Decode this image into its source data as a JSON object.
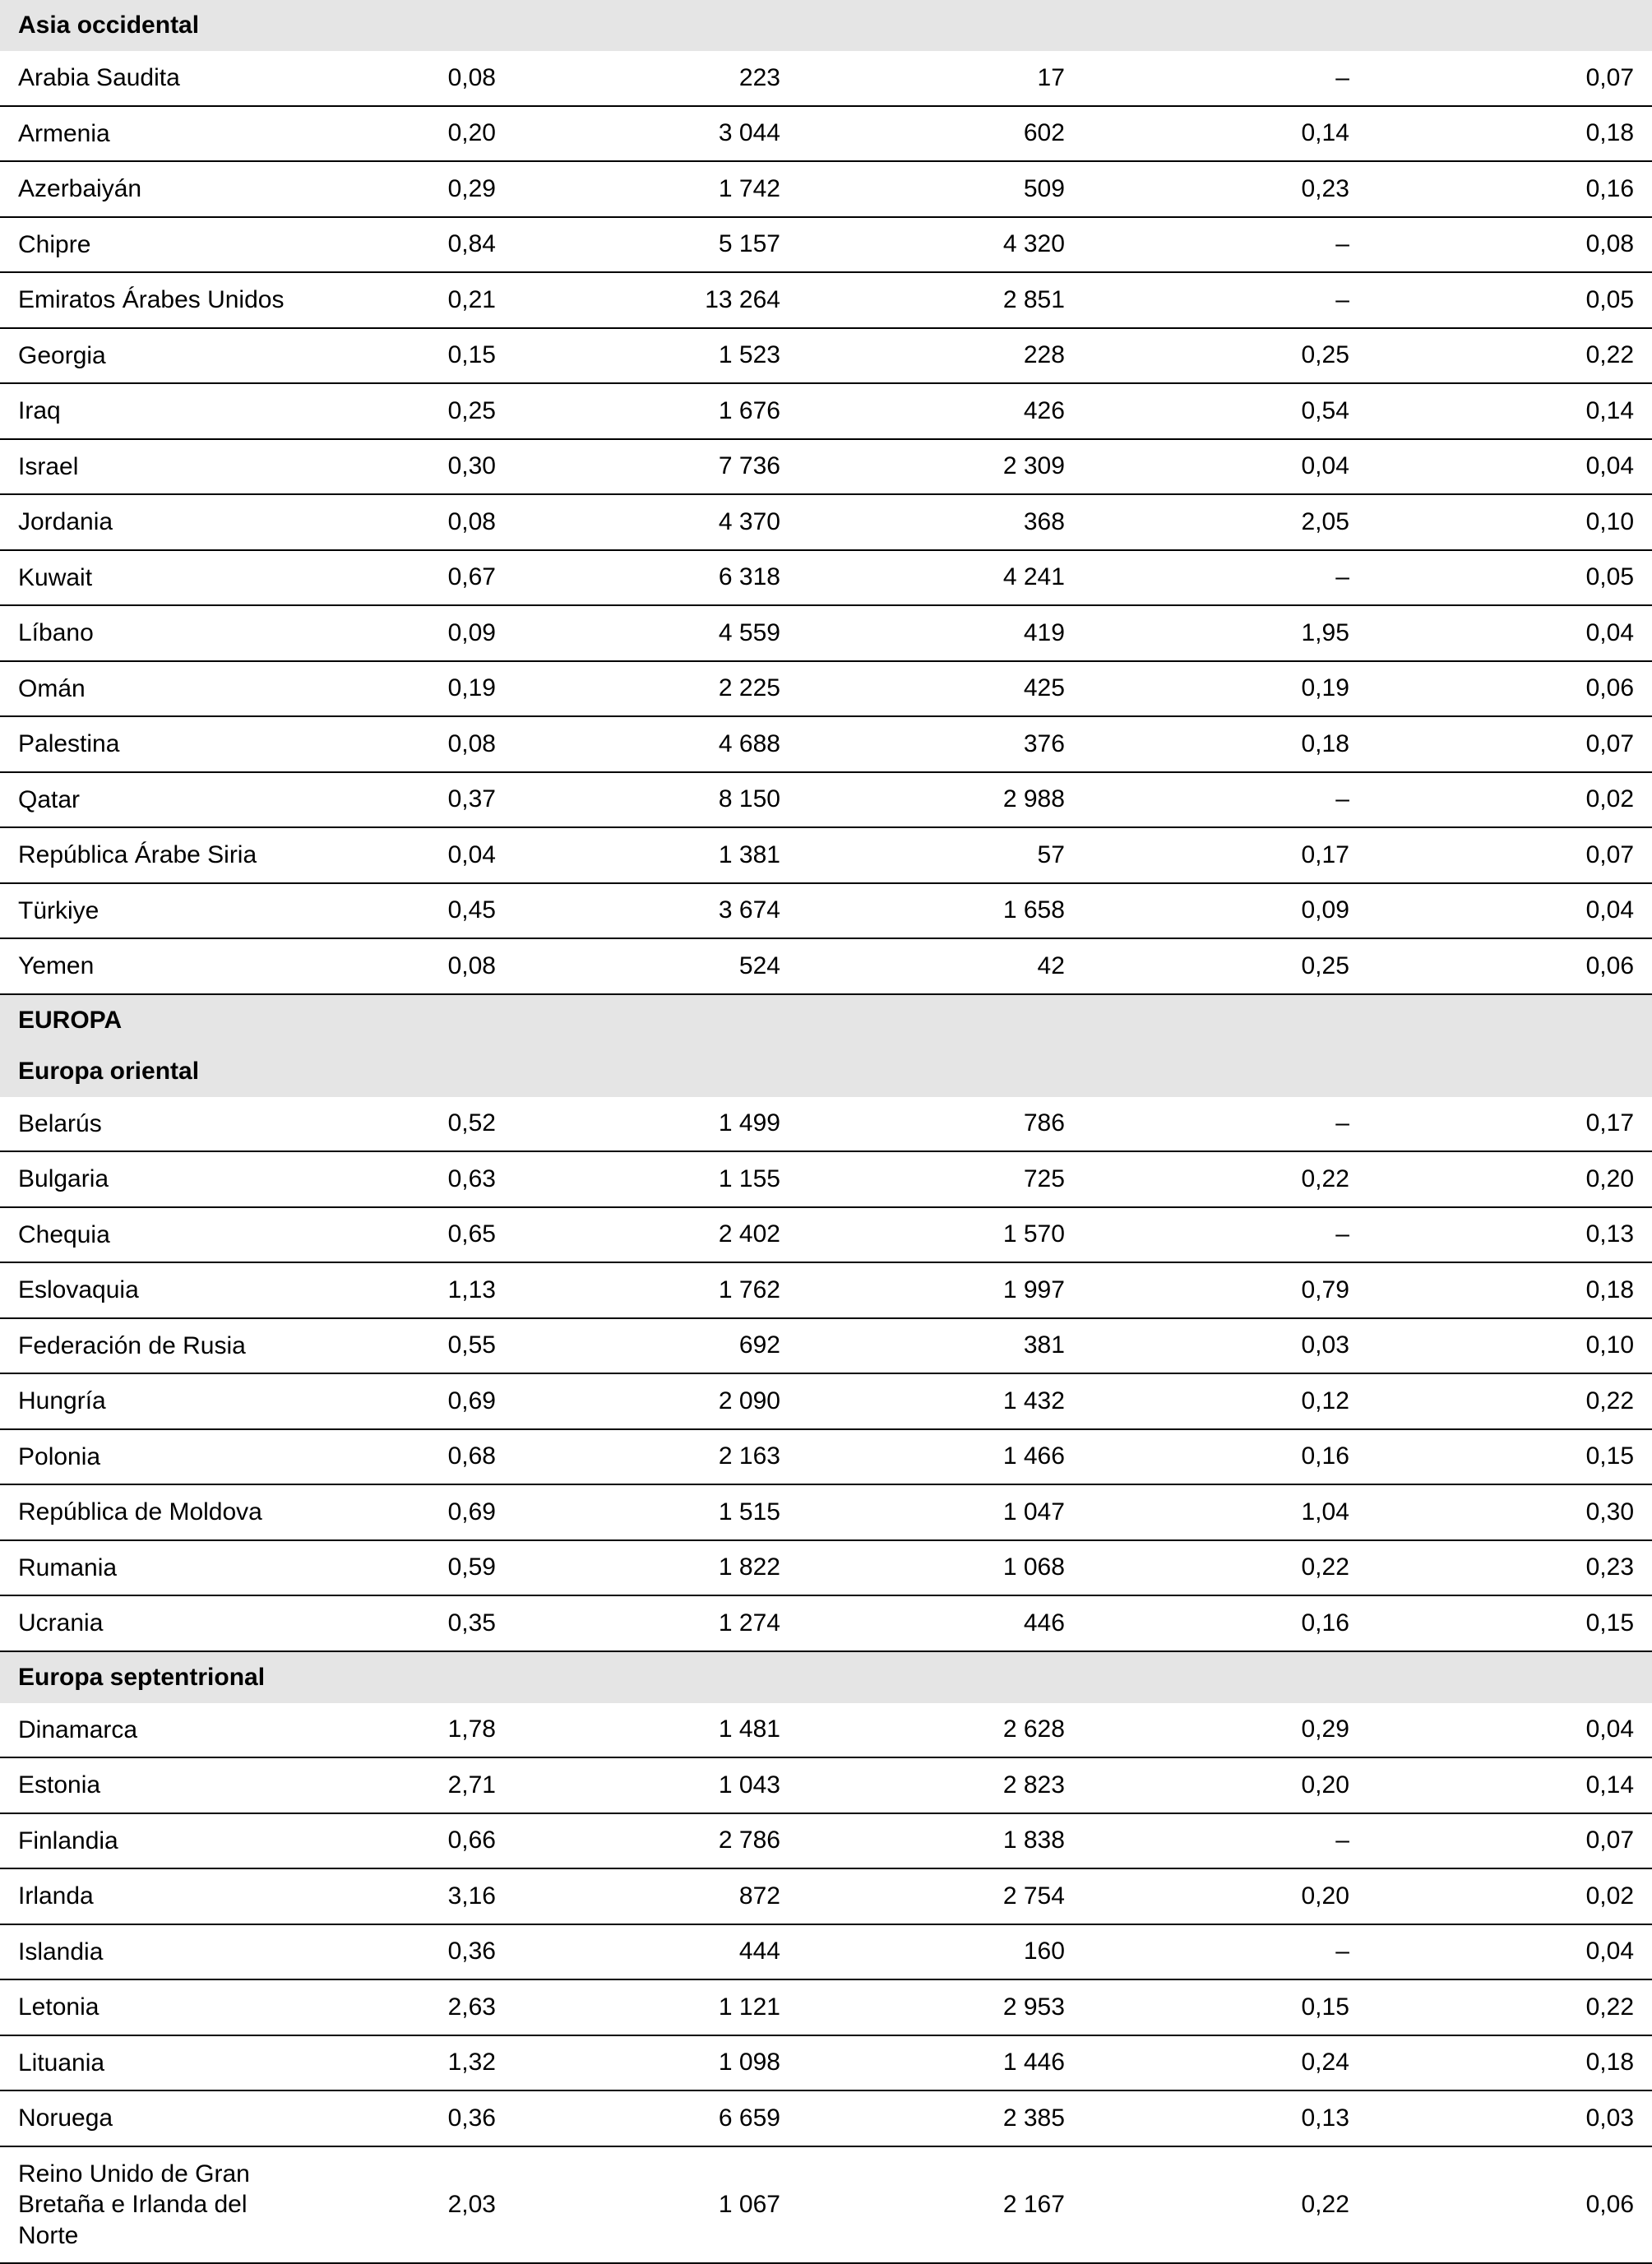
{
  "table": {
    "background_color": "#ffffff",
    "header_bg": "#e5e5e5",
    "border_color": "#000000",
    "font_family": "Arial, Helvetica, sans-serif",
    "font_size_pt": 22,
    "sections": [
      {
        "title": "Asia occidental",
        "bold": true,
        "rows": [
          {
            "label": "Arabia Saudita",
            "c1": "0,08",
            "c2": "223",
            "c3": "17",
            "c4": "–",
            "c5": "0,07"
          },
          {
            "label": "Armenia",
            "c1": "0,20",
            "c2": "3 044",
            "c3": "602",
            "c4": "0,14",
            "c5": "0,18"
          },
          {
            "label": "Azerbaiyán",
            "c1": "0,29",
            "c2": "1 742",
            "c3": "509",
            "c4": "0,23",
            "c5": "0,16"
          },
          {
            "label": "Chipre",
            "c1": "0,84",
            "c2": "5 157",
            "c3": "4 320",
            "c4": "–",
            "c5": "0,08"
          },
          {
            "label": "Emiratos Árabes Unidos",
            "c1": "0,21",
            "c2": "13 264",
            "c3": "2 851",
            "c4": "–",
            "c5": "0,05"
          },
          {
            "label": "Georgia",
            "c1": "0,15",
            "c2": "1 523",
            "c3": "228",
            "c4": "0,25",
            "c5": "0,22"
          },
          {
            "label": "Iraq",
            "c1": "0,25",
            "c2": "1 676",
            "c3": "426",
            "c4": "0,54",
            "c5": "0,14"
          },
          {
            "label": "Israel",
            "c1": "0,30",
            "c2": "7 736",
            "c3": "2 309",
            "c4": "0,04",
            "c5": "0,04"
          },
          {
            "label": "Jordania",
            "c1": "0,08",
            "c2": "4 370",
            "c3": "368",
            "c4": "2,05",
            "c5": "0,10"
          },
          {
            "label": "Kuwait",
            "c1": "0,67",
            "c2": "6 318",
            "c3": "4 241",
            "c4": "–",
            "c5": "0,05"
          },
          {
            "label": "Líbano",
            "c1": "0,09",
            "c2": "4 559",
            "c3": "419",
            "c4": "1,95",
            "c5": "0,04"
          },
          {
            "label": "Omán",
            "c1": "0,19",
            "c2": "2 225",
            "c3": "425",
            "c4": "0,19",
            "c5": "0,06"
          },
          {
            "label": "Palestina",
            "c1": "0,08",
            "c2": "4 688",
            "c3": "376",
            "c4": "0,18",
            "c5": "0,07"
          },
          {
            "label": "Qatar",
            "c1": "0,37",
            "c2": "8 150",
            "c3": "2 988",
            "c4": "–",
            "c5": "0,02"
          },
          {
            "label": "República Árabe Siria",
            "c1": "0,04",
            "c2": "1 381",
            "c3": "57",
            "c4": "0,17",
            "c5": "0,07"
          },
          {
            "label": "Türkiye",
            "c1": "0,45",
            "c2": "3 674",
            "c3": "1 658",
            "c4": "0,09",
            "c5": "0,04"
          },
          {
            "label": "Yemen",
            "c1": "0,08",
            "c2": "524",
            "c3": "42",
            "c4": "0,25",
            "c5": "0,06"
          }
        ]
      },
      {
        "title": "EUROPA",
        "bold": true,
        "rows": []
      },
      {
        "title": "Europa oriental",
        "bold": true,
        "rows": [
          {
            "label": "Belarús",
            "c1": "0,52",
            "c2": "1 499",
            "c3": "786",
            "c4": "–",
            "c5": "0,17"
          },
          {
            "label": "Bulgaria",
            "c1": "0,63",
            "c2": "1 155",
            "c3": "725",
            "c4": "0,22",
            "c5": "0,20"
          },
          {
            "label": "Chequia",
            "c1": "0,65",
            "c2": "2 402",
            "c3": "1 570",
            "c4": "–",
            "c5": "0,13"
          },
          {
            "label": "Eslovaquia",
            "c1": "1,13",
            "c2": "1 762",
            "c3": "1 997",
            "c4": "0,79",
            "c5": "0,18"
          },
          {
            "label": "Federación de Rusia",
            "c1": "0,55",
            "c2": "692",
            "c3": "381",
            "c4": "0,03",
            "c5": "0,10"
          },
          {
            "label": "Hungría",
            "c1": "0,69",
            "c2": "2 090",
            "c3": "1 432",
            "c4": "0,12",
            "c5": "0,22"
          },
          {
            "label": "Polonia",
            "c1": "0,68",
            "c2": "2 163",
            "c3": "1 466",
            "c4": "0,16",
            "c5": "0,15"
          },
          {
            "label": "República de Moldova",
            "c1": "0,69",
            "c2": "1 515",
            "c3": "1 047",
            "c4": "1,04",
            "c5": "0,30"
          },
          {
            "label": "Rumania",
            "c1": "0,59",
            "c2": "1 822",
            "c3": "1 068",
            "c4": "0,22",
            "c5": "0,23"
          },
          {
            "label": "Ucrania",
            "c1": "0,35",
            "c2": "1 274",
            "c3": "446",
            "c4": "0,16",
            "c5": "0,15"
          }
        ]
      },
      {
        "title": "Europa septentrional",
        "bold": true,
        "rows": [
          {
            "label": "Dinamarca",
            "c1": "1,78",
            "c2": "1 481",
            "c3": "2 628",
            "c4": "0,29",
            "c5": "0,04"
          },
          {
            "label": "Estonia",
            "c1": "2,71",
            "c2": "1 043",
            "c3": "2 823",
            "c4": "0,20",
            "c5": "0,14"
          },
          {
            "label": "Finlandia",
            "c1": "0,66",
            "c2": "2 786",
            "c3": "1 838",
            "c4": "–",
            "c5": "0,07"
          },
          {
            "label": "Irlanda",
            "c1": "3,16",
            "c2": "872",
            "c3": "2 754",
            "c4": "0,20",
            "c5": "0,02"
          },
          {
            "label": "Islandia",
            "c1": "0,36",
            "c2": "444",
            "c3": "160",
            "c4": "–",
            "c5": "0,04"
          },
          {
            "label": "Letonia",
            "c1": "2,63",
            "c2": "1 121",
            "c3": "2 953",
            "c4": "0,15",
            "c5": "0,22"
          },
          {
            "label": "Lituania",
            "c1": "1,32",
            "c2": "1 098",
            "c3": "1 446",
            "c4": "0,24",
            "c5": "0,18"
          },
          {
            "label": "Noruega",
            "c1": "0,36",
            "c2": "6 659",
            "c3": "2 385",
            "c4": "0,13",
            "c5": "0,03"
          },
          {
            "label": "Reino Unido de Gran Bretaña e Irlanda del Norte",
            "c1": "2,03",
            "c2": "1 067",
            "c3": "2 167",
            "c4": "0,22",
            "c5": "0,06"
          }
        ]
      }
    ]
  }
}
